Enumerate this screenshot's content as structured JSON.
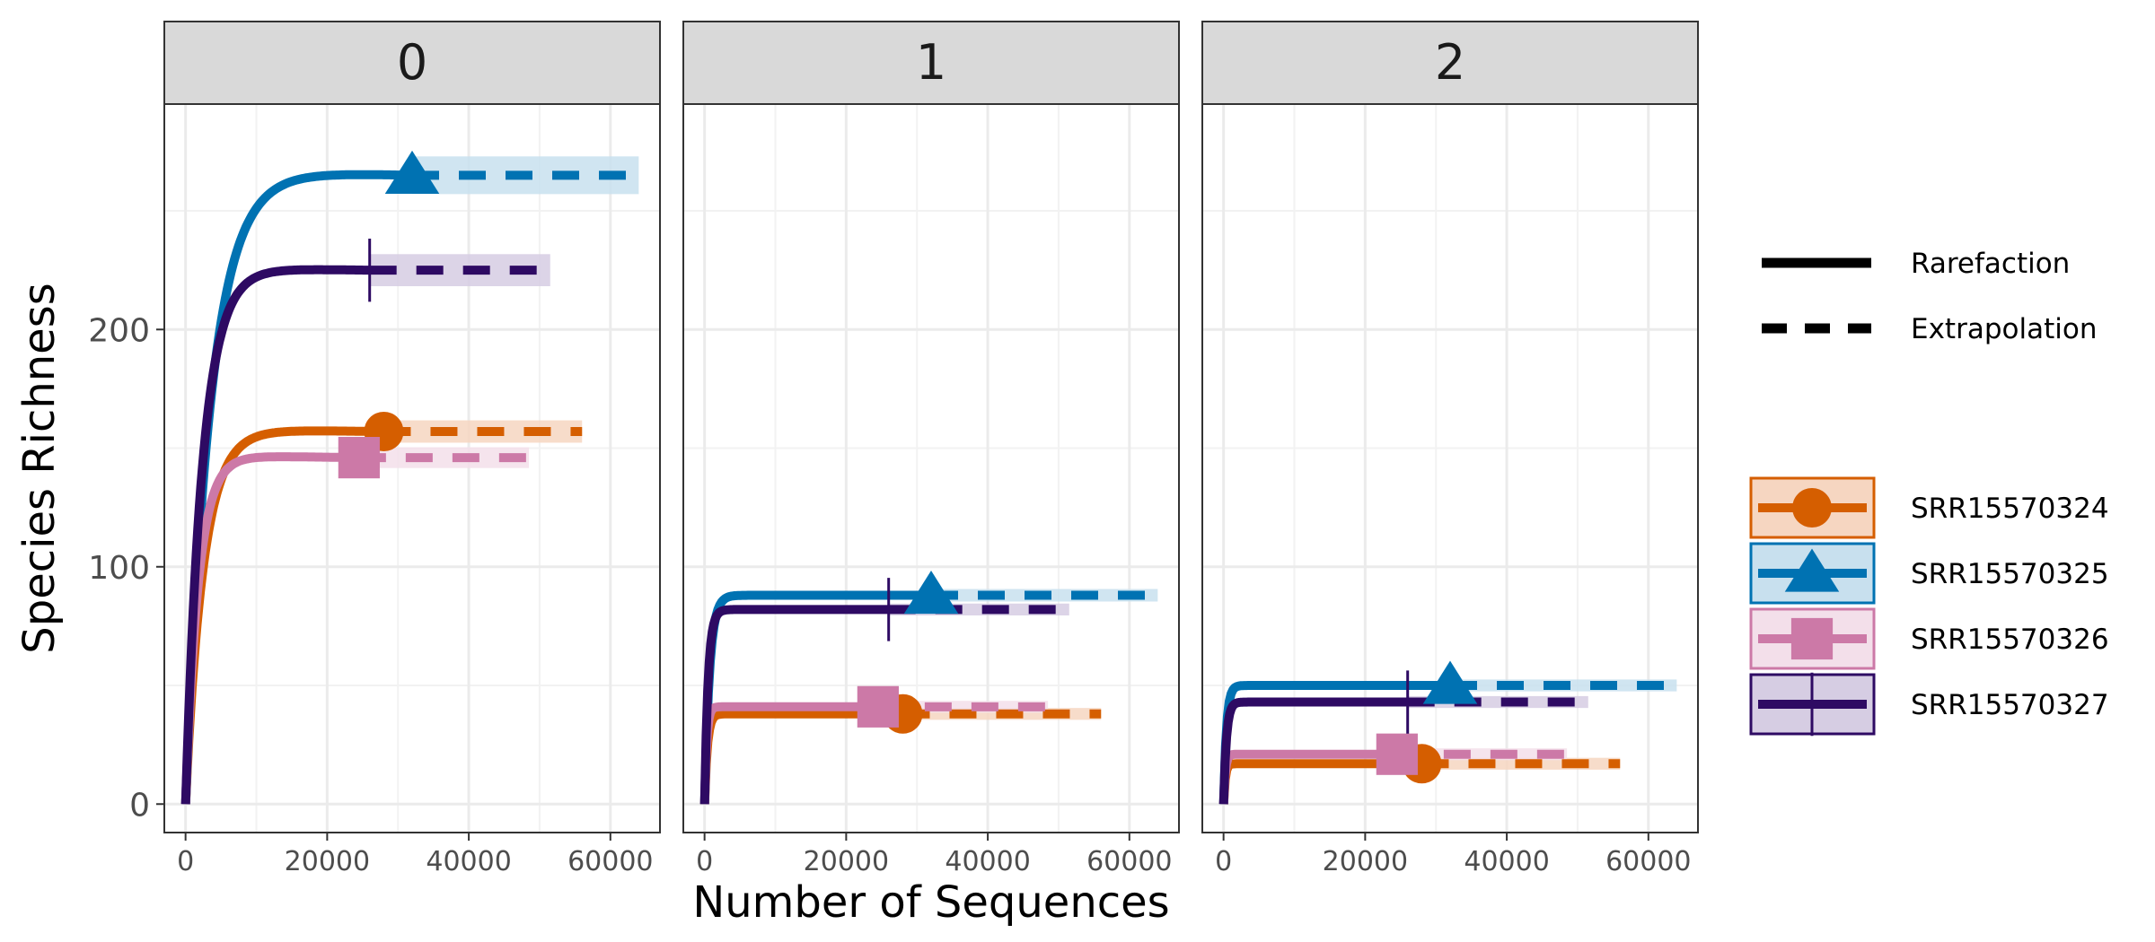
{
  "chart_data": {
    "type": "line",
    "xlabel": "Number of Sequences",
    "ylabel": "Species Richness",
    "xlim": [
      -3000,
      67000
    ],
    "ylim": [
      -12,
      295
    ],
    "x_ticks": [
      0,
      20000,
      40000,
      60000
    ],
    "y_ticks": [
      0,
      100,
      200
    ],
    "grid": true,
    "legend_position": "right",
    "line_types": [
      {
        "name": "Rarefaction",
        "style": "solid"
      },
      {
        "name": "Extrapolation",
        "style": "dashed"
      }
    ],
    "samples": [
      {
        "name": "SRR15570324",
        "color": "#D55E00",
        "fill": "#F6D6C1",
        "marker": "circle"
      },
      {
        "name": "SRR15570325",
        "color": "#0072B2",
        "fill": "#C8E0EE",
        "marker": "triangle"
      },
      {
        "name": "SRR15570326",
        "color": "#CC79A7",
        "fill": "#F3DFEA",
        "marker": "square"
      },
      {
        "name": "SRR15570327",
        "color": "#2E0A63",
        "fill": "#D6CDE3",
        "marker": "cross"
      }
    ],
    "panels": [
      {
        "label": "0",
        "series": [
          {
            "sample": "SRR15570324",
            "n_observed": 28000,
            "s_observed": 157,
            "asymptote": 158,
            "k": 2500,
            "x_max": 56000
          },
          {
            "sample": "SRR15570325",
            "n_observed": 32000,
            "s_observed": 265,
            "asymptote": 267,
            "k": 3500,
            "x_max": 64000
          },
          {
            "sample": "SRR15570326",
            "n_observed": 24500,
            "s_observed": 146,
            "asymptote": 147,
            "k": 1800,
            "x_max": 48500
          },
          {
            "sample": "SRR15570327",
            "n_observed": 26000,
            "s_observed": 225,
            "asymptote": 226,
            "k": 2400,
            "x_max": 51500
          }
        ]
      },
      {
        "label": "1",
        "series": [
          {
            "sample": "SRR15570324",
            "n_observed": 28000,
            "s_observed": 38,
            "asymptote": 38,
            "k": 400,
            "x_max": 56000
          },
          {
            "sample": "SRR15570325",
            "n_observed": 32000,
            "s_observed": 88,
            "asymptote": 88,
            "k": 700,
            "x_max": 64000
          },
          {
            "sample": "SRR15570326",
            "n_observed": 24500,
            "s_observed": 41,
            "asymptote": 41,
            "k": 300,
            "x_max": 48500
          },
          {
            "sample": "SRR15570327",
            "n_observed": 26000,
            "s_observed": 82,
            "asymptote": 82,
            "k": 500,
            "x_max": 51500
          }
        ]
      },
      {
        "label": "2",
        "series": [
          {
            "sample": "SRR15570324",
            "n_observed": 28000,
            "s_observed": 17,
            "asymptote": 17,
            "k": 250,
            "x_max": 56000
          },
          {
            "sample": "SRR15570325",
            "n_observed": 32000,
            "s_observed": 50,
            "asymptote": 50,
            "k": 400,
            "x_max": 64000
          },
          {
            "sample": "SRR15570326",
            "n_observed": 24500,
            "s_observed": 21,
            "asymptote": 21,
            "k": 250,
            "x_max": 48500
          },
          {
            "sample": "SRR15570327",
            "n_observed": 26000,
            "s_observed": 43,
            "asymptote": 43,
            "k": 400,
            "x_max": 51500
          }
        ]
      }
    ]
  }
}
